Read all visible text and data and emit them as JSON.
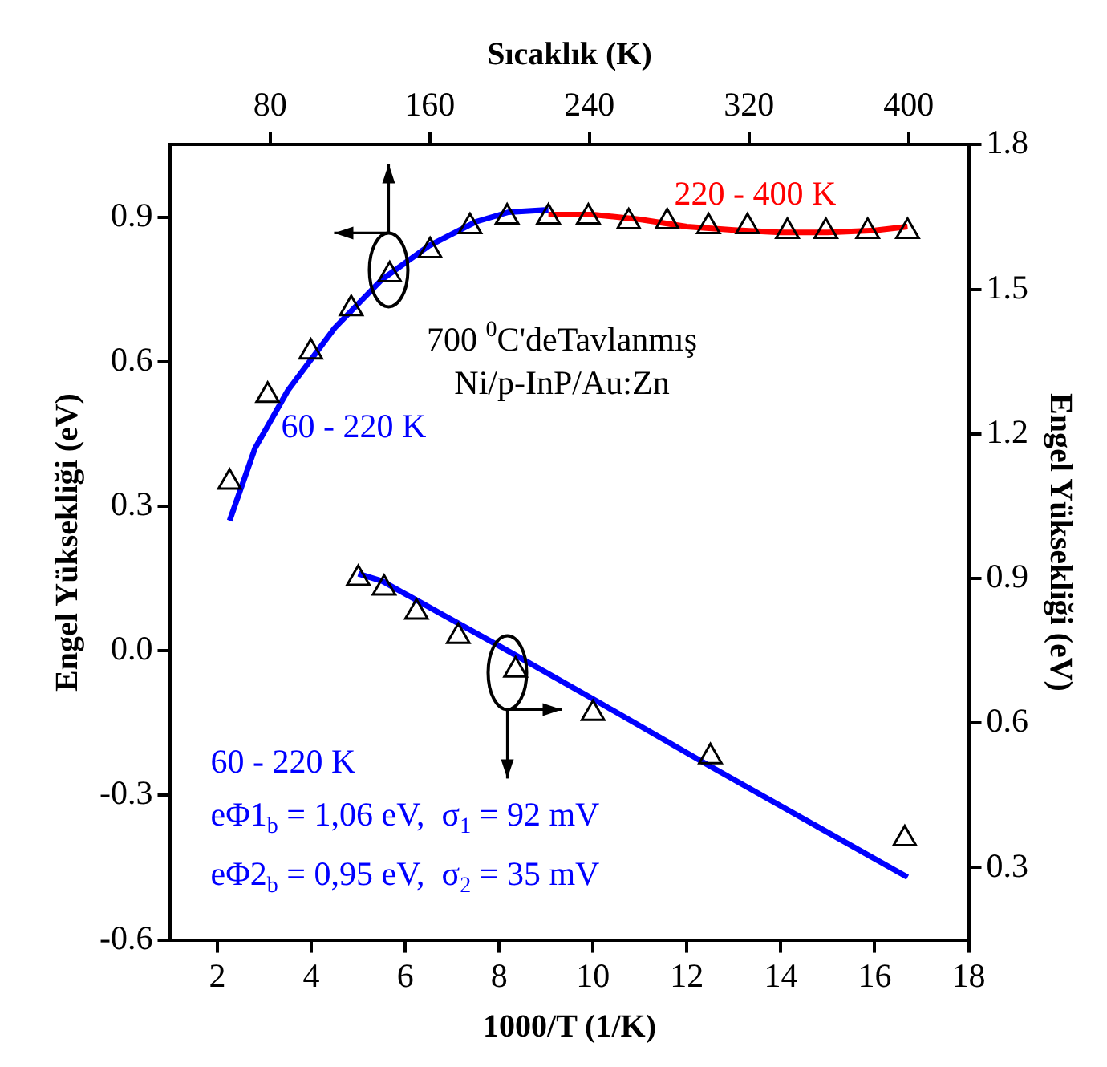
{
  "chart_data": {
    "type": "scatter",
    "xlabel": "1000/T (1/K)",
    "x2label": "Sıcaklık (K)",
    "ylabel": "Engel Yüksekliği (eV)",
    "y2label": "Engel Yüksekliği (eV)",
    "xlim": [
      1,
      18
    ],
    "xticks": [
      2,
      4,
      6,
      8,
      10,
      12,
      14,
      16,
      18
    ],
    "x2lim": [
      30,
      430
    ],
    "x2ticks": [
      80,
      160,
      240,
      320,
      400
    ],
    "ylim": [
      -0.6,
      1.05
    ],
    "yticks": [
      -0.6,
      -0.3,
      {
        "value": 0,
        "label": "0.0"
      },
      0.3,
      0.6,
      0.9
    ],
    "y2lim": [
      0.15,
      1.8
    ],
    "y2ticks": [
      0.3,
      0.6,
      0.9,
      1.2,
      1.5,
      1.8
    ],
    "marker": "triangle",
    "grid": false,
    "legend": false,
    "series": [
      {
        "color": "#000000",
        "x": [
          2.26,
          3.07,
          3.99,
          4.85,
          5.67,
          6.53,
          7.38,
          8.17,
          9.05,
          9.9,
          10.76,
          11.58,
          12.46,
          13.29,
          14.14,
          14.96,
          15.85,
          16.7
        ],
        "values": [
          0.35,
          0.53,
          0.62,
          0.71,
          0.78,
          0.83,
          0.88,
          0.9,
          0.9,
          0.9,
          0.89,
          0.89,
          0.88,
          0.88,
          0.87,
          0.87,
          0.87,
          0.87
        ]
      },
      {
        "type": "line",
        "marker": "none",
        "color": "#0000ff",
        "x": [
          2.26,
          2.8,
          3.5,
          4.5,
          5.5,
          6.5,
          7.5,
          8.2,
          9.05
        ],
        "values": [
          0.27,
          0.42,
          0.54,
          0.67,
          0.77,
          0.84,
          0.89,
          0.91,
          0.915
        ]
      },
      {
        "type": "line",
        "marker": "none",
        "color": "#ff0000",
        "x": [
          9.05,
          10,
          11,
          12,
          13,
          14,
          15,
          16,
          16.7
        ],
        "values": [
          0.905,
          0.905,
          0.895,
          0.88,
          0.873,
          0.868,
          0.868,
          0.872,
          0.88
        ]
      },
      {
        "color": "#000000",
        "axis": "y2",
        "x": [
          5.0,
          5.55,
          6.24,
          7.13,
          8.35,
          10.0,
          12.5,
          16.64
        ],
        "values": [
          0.9,
          0.88,
          0.83,
          0.78,
          0.71,
          0.62,
          0.53,
          0.36
        ]
      },
      {
        "type": "line",
        "marker": "none",
        "color": "#0000ff",
        "axis": "y2",
        "x": [
          5.0,
          5.5,
          8,
          10,
          12.5,
          16.7
        ],
        "values": [
          0.91,
          0.895,
          0.76,
          0.65,
          0.51,
          0.28
        ]
      }
    ],
    "annotations": [
      "220 - 400 K",
      "700 $^{0}$C'deTavlanmış",
      "Ni/p-InP/Au:Zn",
      "60 - 220 K",
      "60 - 220 K",
      "eΦ1$_{b}$ = 1,06 eV,  σ$_{1}$ = 92 mV",
      "eΦ2$_{b}$ = 0,95 eV,  σ$_{2}$ = 35 mV"
    ]
  }
}
